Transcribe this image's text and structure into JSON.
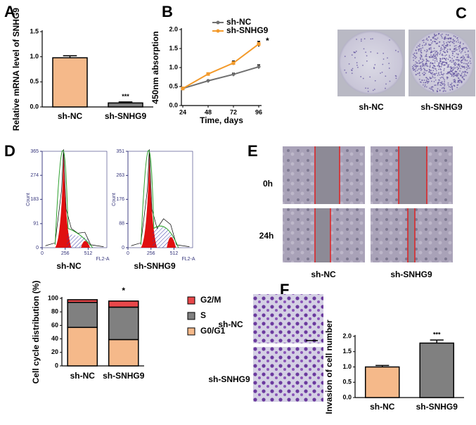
{
  "panels": {
    "letters": [
      "A",
      "B",
      "C",
      "D",
      "E",
      "F"
    ],
    "C": {
      "labels": [
        "sh-NC",
        "sh-SNHG9"
      ]
    },
    "E": {
      "rows": [
        "0h",
        "24h"
      ],
      "cols": [
        "sh-NC",
        "sh-SNHG9"
      ]
    },
    "F": {
      "labels": [
        "sh-NC",
        "sh-SNHG9"
      ]
    }
  },
  "chart_data": [
    {
      "type": "bar",
      "ylabel": "Relative mRNA level of SNHG9",
      "categories": [
        "sh-NC",
        "sh-SNHG9"
      ],
      "values": [
        0.98,
        0.08
      ],
      "errors": [
        0.04,
        0.02
      ],
      "colors": [
        "#f5b98a",
        "#808080"
      ],
      "ylim": [
        0,
        1.5
      ],
      "yticks": [
        {
          "value": 0,
          "label": "0.0"
        },
        0.5,
        {
          "value": 1,
          "label": "1.0"
        },
        1.5
      ],
      "annotation": "***"
    },
    {
      "type": "line",
      "ylabel": "450nm absorption",
      "xlabel": "Time, days",
      "x": [
        24,
        48,
        72,
        96
      ],
      "series": [
        {
          "name": "sh-NC",
          "color": "#707070",
          "values": [
            0.45,
            0.65,
            0.82,
            1.02
          ],
          "errors": [
            0.02,
            0.02,
            0.03,
            0.05
          ]
        },
        {
          "name": "sh-SNHG9",
          "color": "#f39a2b",
          "values": [
            0.45,
            0.83,
            1.12,
            1.62
          ],
          "errors": [
            0.02,
            0.02,
            0.05,
            0.07
          ]
        }
      ],
      "xlim": [
        24,
        96
      ],
      "xticks": [
        24,
        48,
        72,
        96
      ],
      "ylim": [
        0,
        2
      ],
      "yticks": [
        {
          "value": 0,
          "label": "0.0"
        },
        0.5,
        {
          "value": 1,
          "label": "1.0"
        },
        1.5,
        {
          "value": 2,
          "label": "2.0"
        }
      ],
      "annotation": "*"
    },
    {
      "type": "flow",
      "title": "sh-NC",
      "ylabel": "Count",
      "xlabel": "FL2-A",
      "xlim": [
        0,
        720
      ],
      "xticks": [
        0,
        256,
        512
      ],
      "ylim": [
        0,
        365
      ],
      "yticks": [
        0,
        91,
        183,
        274,
        365
      ]
    },
    {
      "type": "flow",
      "title": "sh-SNHG9",
      "ylabel": "Count",
      "xlabel": "FL2-A",
      "xlim": [
        0,
        720
      ],
      "xticks": [
        0,
        256,
        512
      ],
      "ylim": [
        0,
        351
      ],
      "yticks": [
        0,
        88,
        176,
        263,
        351
      ]
    },
    {
      "type": "stacked",
      "ylabel": "Cell cycle distribution (%)",
      "categories": [
        "sh-NC",
        "sh-SNHG9"
      ],
      "series": [
        {
          "name": "G0/G1",
          "color": "#f5b98a",
          "values": [
            57,
            39
          ],
          "errors": [
            2,
            3
          ]
        },
        {
          "name": "S",
          "color": "#808080",
          "values": [
            37,
            48
          ],
          "errors": [
            2,
            7
          ]
        },
        {
          "name": "G2/M",
          "color": "#e8474a",
          "values": [
            4,
            9
          ]
        }
      ],
      "ylim": [
        0,
        100
      ],
      "yticks": [
        0,
        20,
        40,
        60,
        80,
        100
      ],
      "annotation": "*"
    },
    {
      "type": "bar",
      "ylabel": "Invasion of cell number",
      "categories": [
        "sh-NC",
        "sh-SNHG9"
      ],
      "values": [
        1,
        1.78
      ],
      "errors": [
        0.05,
        0.1
      ],
      "colors": [
        "#f5b98a",
        "#808080"
      ],
      "ylim": [
        0,
        2
      ],
      "yticks": [
        {
          "value": 0,
          "label": "0.0"
        },
        0.5,
        {
          "value": 1,
          "label": "1.0"
        },
        1.5,
        {
          "value": 2,
          "label": "2.0"
        }
      ],
      "annotation": "***"
    }
  ]
}
